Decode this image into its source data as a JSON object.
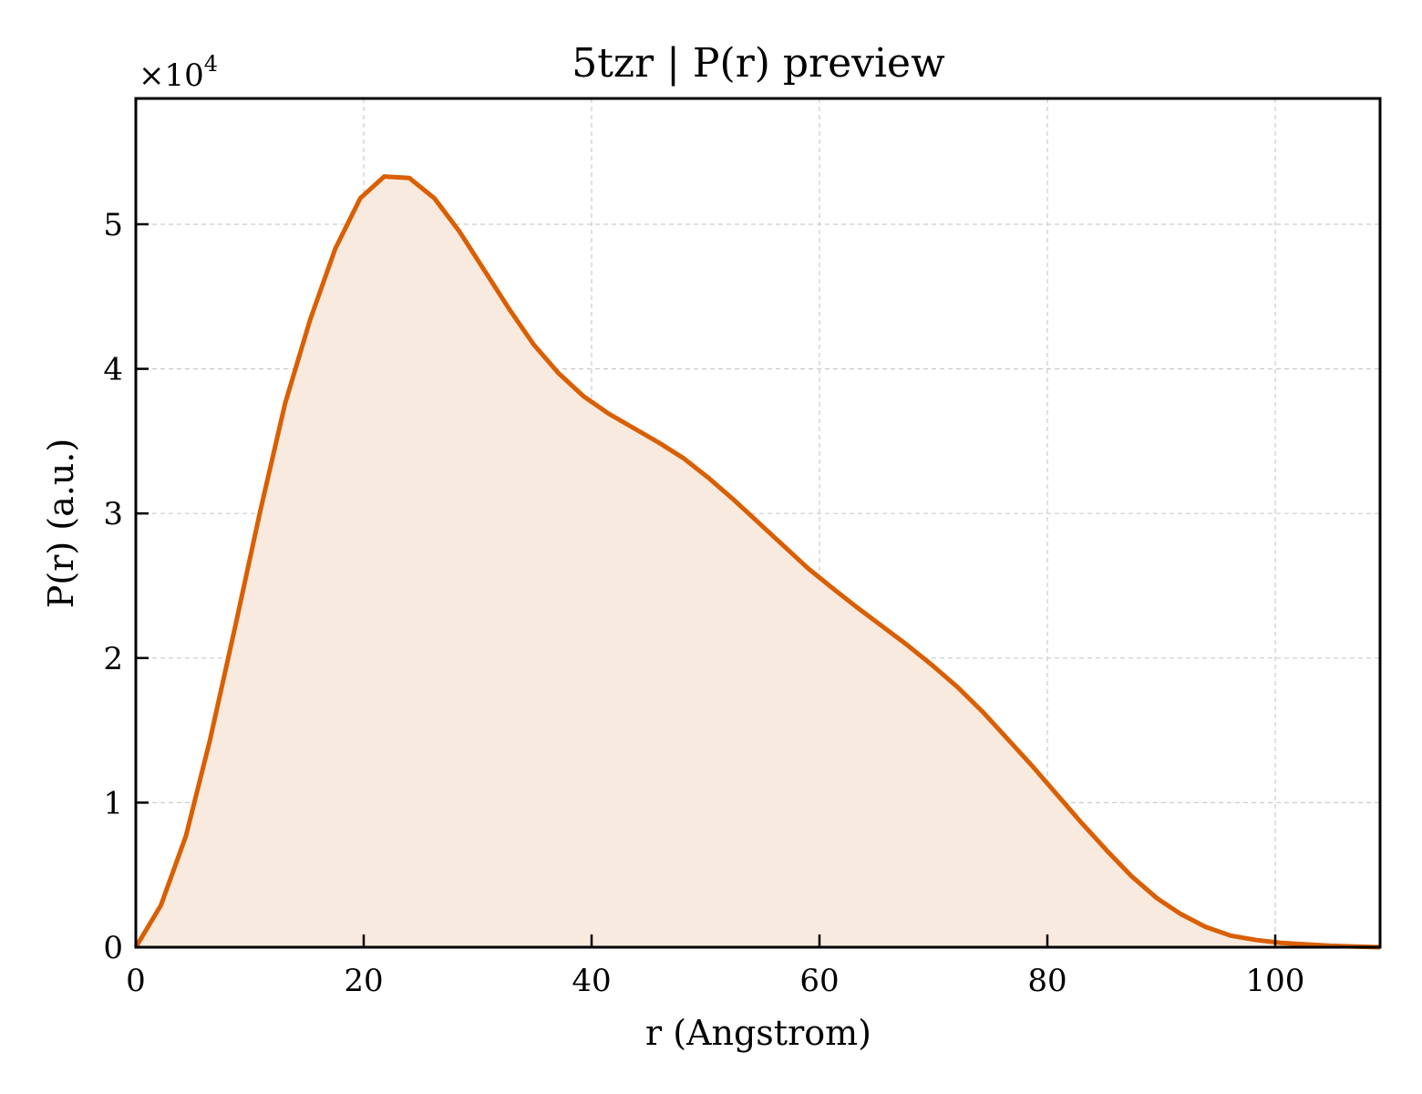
{
  "chart_data": {
    "type": "area",
    "title": "5tzr | P(r) preview",
    "xlabel": "r (Angstrom)",
    "ylabel": "P(r) (a.u.)",
    "y_offset_label": "×10",
    "y_offset_exponent": "4",
    "y_scale_factor": 10000,
    "xlim": [
      0,
      109.2
    ],
    "ylim": [
      0,
      58700
    ],
    "x_ticks": [
      0,
      20,
      40,
      60,
      80,
      100
    ],
    "x_tick_labels": [
      "0",
      "20",
      "40",
      "60",
      "80",
      "100"
    ],
    "y_ticks": [
      0,
      10000,
      20000,
      30000,
      40000,
      50000
    ],
    "y_tick_labels": [
      "0",
      "1",
      "2",
      "3",
      "4",
      "5"
    ],
    "grid": true,
    "line_color": "#d95f02",
    "fill_color": "#f9eadf",
    "series": [
      {
        "x": [
          0,
          2.2,
          4.4,
          6.5,
          8.7,
          10.9,
          13.1,
          15.3,
          17.5,
          19.7,
          21.8,
          24.0,
          26.2,
          28.4,
          30.6,
          32.8,
          34.9,
          37.1,
          39.3,
          41.5,
          43.7,
          45.9,
          48.1,
          50.2,
          52.4,
          54.6,
          56.8,
          59.0,
          61.2,
          63.3,
          65.5,
          67.7,
          69.9,
          72.1,
          74.3,
          76.4,
          78.6,
          80.8,
          83.0,
          85.2,
          87.4,
          89.6,
          91.7,
          93.9,
          96.1,
          98.3,
          100.5,
          102.7,
          104.8,
          107.0,
          109.2
        ],
        "y": [
          0,
          2900,
          7700,
          14300,
          22100,
          30100,
          37600,
          43400,
          48300,
          51800,
          53300,
          53200,
          51800,
          49500,
          46800,
          44100,
          41700,
          39700,
          38100,
          36900,
          35900,
          34900,
          33800,
          32500,
          31000,
          29400,
          27800,
          26200,
          24800,
          23500,
          22200,
          20900,
          19500,
          18000,
          16300,
          14500,
          12600,
          10600,
          8600,
          6700,
          4900,
          3400,
          2300,
          1400,
          800,
          500,
          300,
          200,
          100,
          50,
          0
        ]
      }
    ]
  }
}
